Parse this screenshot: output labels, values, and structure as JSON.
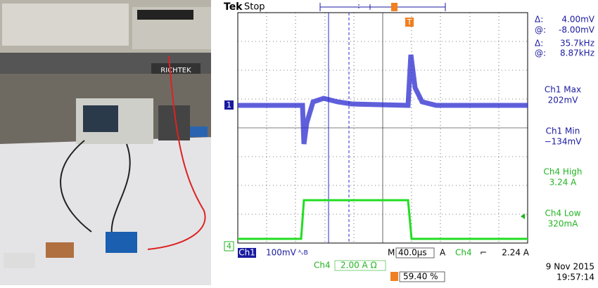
{
  "photo": {
    "label": "RICHTEK"
  },
  "scope": {
    "brand": "Tek",
    "status": "Stop",
    "cursors": [
      {
        "label": "Δ:",
        "value": "4.00mV"
      },
      {
        "label": "@:",
        "value": "-8.00mV"
      },
      {
        "label": "Δ:",
        "value": "35.7kHz"
      },
      {
        "label": "@:",
        "value": "8.87kHz"
      }
    ],
    "measurements": [
      {
        "name": "Ch1 Max",
        "value": "202mV"
      },
      {
        "name": "Ch1 Min",
        "value": "−134mV"
      },
      {
        "name": "Ch4 High",
        "value": "3.24 A"
      },
      {
        "name": "Ch4 Low",
        "value": "320mA"
      }
    ],
    "markers": {
      "ch1": "1",
      "ch4": "4",
      "trigger": "T"
    },
    "bottom": {
      "ch1": "Ch1",
      "ch1_scale": "100mV",
      "ch1_flags": "ᴬᵥB",
      "time_prefix": "M",
      "time_scale": "40.0µs",
      "trig_prefix": "A",
      "trig_source": "Ch4",
      "trig_slope": "⌐",
      "trig_level": "2.24 A",
      "ch4": "Ch4",
      "ch4_scale": "2.00 A Ω",
      "trig_pos": "59.40 %"
    },
    "date": "9 Nov 2015",
    "time": "19:57:14"
  }
}
